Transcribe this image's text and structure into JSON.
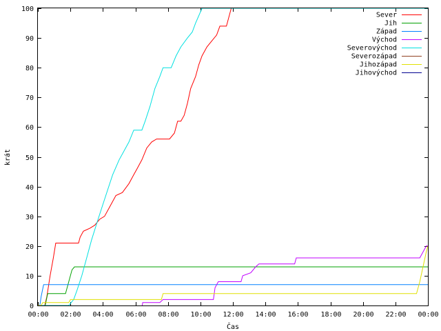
{
  "chart_data": {
    "type": "line",
    "title": "",
    "xlabel": "Čas",
    "ylabel": "krát",
    "xlim": [
      0,
      24
    ],
    "ylim": [
      0,
      100
    ],
    "grid": false,
    "legend_position": "top-right",
    "x_ticks": [
      {
        "value": 0,
        "label": "00:00"
      },
      {
        "value": 2,
        "label": "02:00"
      },
      {
        "value": 4,
        "label": "04:00"
      },
      {
        "value": 6,
        "label": "06:00"
      },
      {
        "value": 8,
        "label": "08:00"
      },
      {
        "value": 10,
        "label": "10:00"
      },
      {
        "value": 12,
        "label": "12:00"
      },
      {
        "value": 14,
        "label": "14:00"
      },
      {
        "value": 16,
        "label": "16:00"
      },
      {
        "value": 18,
        "label": "18:00"
      },
      {
        "value": 20,
        "label": "20:00"
      },
      {
        "value": 22,
        "label": "22:00"
      },
      {
        "value": 24,
        "label": "00:00"
      }
    ],
    "y_ticks": [
      {
        "value": 0,
        "label": "0"
      },
      {
        "value": 10,
        "label": "10"
      },
      {
        "value": 20,
        "label": "20"
      },
      {
        "value": 30,
        "label": "30"
      },
      {
        "value": 40,
        "label": "40"
      },
      {
        "value": 50,
        "label": "50"
      },
      {
        "value": 60,
        "label": "60"
      },
      {
        "value": 70,
        "label": "70"
      },
      {
        "value": 80,
        "label": "80"
      },
      {
        "value": 90,
        "label": "90"
      },
      {
        "value": 100,
        "label": "100"
      }
    ],
    "series": [
      {
        "name": "Sever",
        "color": "#ff0000",
        "points": [
          [
            0.0,
            0
          ],
          [
            0.42,
            0
          ],
          [
            0.55,
            3
          ],
          [
            0.75,
            10
          ],
          [
            0.95,
            16
          ],
          [
            1.1,
            21
          ],
          [
            2.5,
            21
          ],
          [
            2.6,
            23
          ],
          [
            2.8,
            25
          ],
          [
            3.2,
            26
          ],
          [
            3.5,
            27
          ],
          [
            3.8,
            29
          ],
          [
            4.1,
            30
          ],
          [
            4.4,
            33
          ],
          [
            4.6,
            35
          ],
          [
            4.8,
            37
          ],
          [
            5.2,
            38
          ],
          [
            5.6,
            41
          ],
          [
            5.9,
            44
          ],
          [
            6.1,
            46
          ],
          [
            6.4,
            49
          ],
          [
            6.7,
            53
          ],
          [
            7.0,
            55
          ],
          [
            7.3,
            56
          ],
          [
            8.1,
            56
          ],
          [
            8.4,
            58
          ],
          [
            8.6,
            62
          ],
          [
            8.8,
            62
          ],
          [
            9.0,
            64
          ],
          [
            9.2,
            68
          ],
          [
            9.4,
            73
          ],
          [
            9.7,
            77
          ],
          [
            9.9,
            81
          ],
          [
            10.1,
            84
          ],
          [
            10.4,
            87
          ],
          [
            10.7,
            89
          ],
          [
            11.0,
            91
          ],
          [
            11.2,
            94
          ],
          [
            11.6,
            94
          ],
          [
            11.9,
            100
          ],
          [
            24.0,
            100
          ]
        ]
      },
      {
        "name": "Jih",
        "color": "#00a000",
        "points": [
          [
            0.0,
            0
          ],
          [
            0.45,
            0
          ],
          [
            0.6,
            4
          ],
          [
            1.7,
            4
          ],
          [
            1.9,
            8
          ],
          [
            2.1,
            12
          ],
          [
            2.25,
            13
          ],
          [
            24.0,
            13
          ]
        ]
      },
      {
        "name": "Západ",
        "color": "#0080ff",
        "points": [
          [
            0.0,
            0
          ],
          [
            0.12,
            0
          ],
          [
            0.2,
            3
          ],
          [
            0.35,
            7
          ],
          [
            24.0,
            7
          ]
        ]
      },
      {
        "name": "Východ",
        "color": "#c000ff",
        "points": [
          [
            6.4,
            0
          ],
          [
            6.42,
            0
          ],
          [
            6.45,
            1
          ],
          [
            7.5,
            1
          ],
          [
            7.7,
            2
          ],
          [
            10.8,
            2
          ],
          [
            10.9,
            6
          ],
          [
            11.1,
            8
          ],
          [
            12.5,
            8
          ],
          [
            12.6,
            10
          ],
          [
            13.1,
            11
          ],
          [
            13.4,
            13
          ],
          [
            13.6,
            14
          ],
          [
            15.8,
            14
          ],
          [
            15.9,
            16
          ],
          [
            23.5,
            16
          ],
          [
            23.7,
            18
          ],
          [
            23.9,
            20
          ],
          [
            24.0,
            20
          ]
        ]
      },
      {
        "name": "Severovýchod",
        "color": "#00e0e0",
        "points": [
          [
            0.0,
            0
          ],
          [
            1.9,
            0
          ],
          [
            2.2,
            2
          ],
          [
            2.4,
            5
          ],
          [
            2.7,
            10
          ],
          [
            3.0,
            16
          ],
          [
            3.3,
            22
          ],
          [
            3.7,
            29
          ],
          [
            4.0,
            34
          ],
          [
            4.3,
            39
          ],
          [
            4.6,
            44
          ],
          [
            5.0,
            49
          ],
          [
            5.3,
            52
          ],
          [
            5.6,
            55
          ],
          [
            5.9,
            59
          ],
          [
            6.4,
            59
          ],
          [
            6.6,
            62
          ],
          [
            6.9,
            67
          ],
          [
            7.2,
            73
          ],
          [
            7.5,
            77
          ],
          [
            7.7,
            80
          ],
          [
            8.2,
            80
          ],
          [
            8.5,
            84
          ],
          [
            8.8,
            87
          ],
          [
            9.2,
            90
          ],
          [
            9.5,
            92
          ],
          [
            9.7,
            95
          ],
          [
            10.1,
            100
          ],
          [
            24.0,
            100
          ]
        ]
      },
      {
        "name": "Severozápad",
        "color": "#904020",
        "points": []
      },
      {
        "name": "Jihozápad",
        "color": "#e0e000",
        "points": [
          [
            0.0,
            0
          ],
          [
            0.2,
            0
          ],
          [
            0.3,
            1
          ],
          [
            1.9,
            1
          ],
          [
            2.0,
            2
          ],
          [
            7.6,
            2
          ],
          [
            7.7,
            4
          ],
          [
            23.3,
            4
          ],
          [
            23.5,
            8
          ],
          [
            23.7,
            13
          ],
          [
            23.9,
            18
          ],
          [
            24.0,
            20
          ]
        ]
      },
      {
        "name": "Jihovýchod",
        "color": "#000090",
        "points": []
      }
    ]
  }
}
